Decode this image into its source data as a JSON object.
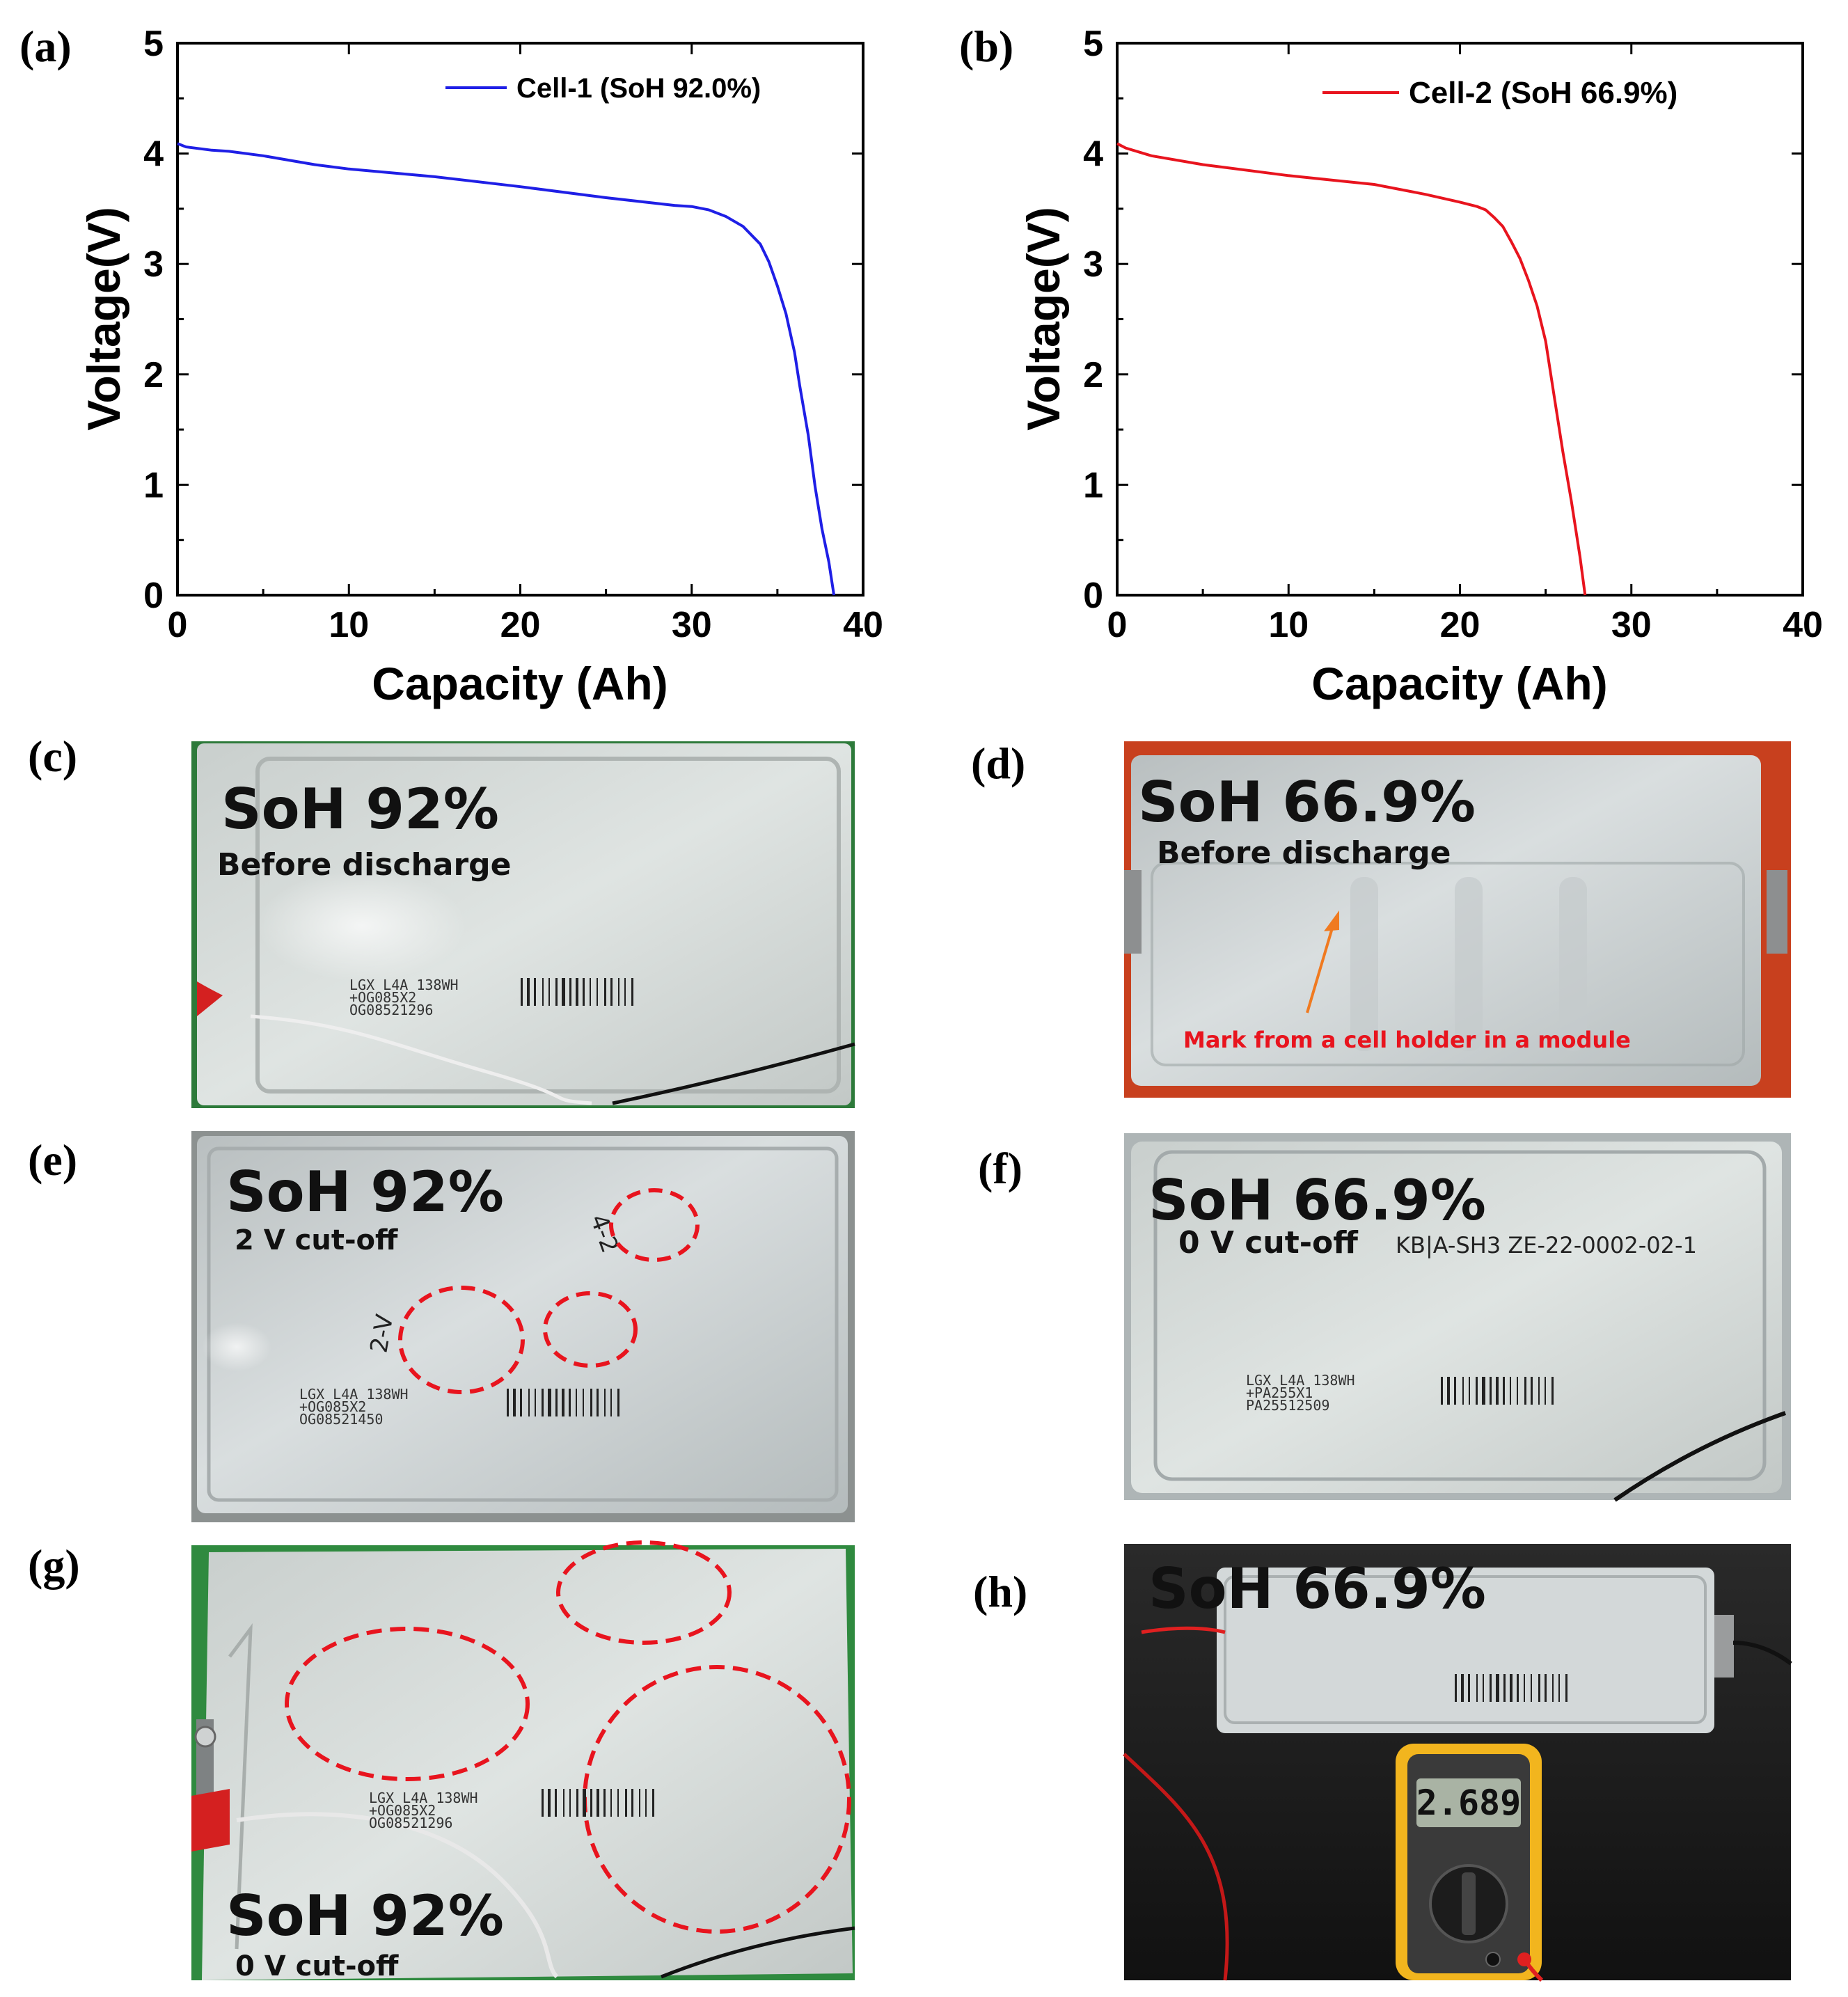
{
  "colors": {
    "cell1": "#1f1fe6",
    "cell2": "#e8141e",
    "circle": "#e8141e"
  },
  "charts": {
    "a": {
      "panel_label": "(a)"
    },
    "b": {
      "panel_label": "(b)"
    }
  },
  "chart_data": [
    {
      "type": "line",
      "panel": "(a)",
      "title": "",
      "xlabel": "Capacity (Ah)",
      "ylabel": "Voltage(V)",
      "xlim": [
        0,
        40
      ],
      "ylim": [
        0,
        5
      ],
      "xticks": [
        "0",
        "10",
        "20",
        "30",
        "40"
      ],
      "yticks": [
        "0",
        "1",
        "2",
        "3",
        "4",
        "5"
      ],
      "legend_position": "top-right",
      "series": [
        {
          "name": "Cell-1 (SoH 92.0%)",
          "color": "#1f1fe6",
          "x": [
            0,
            0.5,
            2,
            3,
            5,
            8,
            10,
            15,
            20,
            25,
            29,
            30,
            31,
            32,
            33,
            34,
            34.5,
            35,
            35.5,
            36,
            36.3,
            36.8,
            37.2,
            37.6,
            38,
            38.3
          ],
          "y": [
            4.09,
            4.06,
            4.03,
            4.02,
            3.98,
            3.9,
            3.86,
            3.79,
            3.7,
            3.6,
            3.53,
            3.52,
            3.49,
            3.43,
            3.34,
            3.18,
            3.02,
            2.8,
            2.55,
            2.2,
            1.9,
            1.45,
            0.98,
            0.6,
            0.3,
            0.0
          ]
        }
      ]
    },
    {
      "type": "line",
      "panel": "(b)",
      "title": "",
      "xlabel": "Capacity (Ah)",
      "ylabel": "Voltage(V)",
      "xlim": [
        0,
        40
      ],
      "ylim": [
        0,
        5
      ],
      "xticks": [
        "0",
        "10",
        "20",
        "30",
        "40"
      ],
      "yticks": [
        "0",
        "1",
        "2",
        "3",
        "4",
        "5"
      ],
      "legend_position": "top-right",
      "series": [
        {
          "name": "Cell-2 (SoH 66.9%)",
          "color": "#e8141e",
          "x": [
            0,
            0.5,
            2,
            5,
            10,
            15,
            18,
            20,
            21,
            21.5,
            22,
            22.5,
            23,
            23.5,
            24,
            24.5,
            25,
            25.5,
            26,
            26.5,
            27,
            27.3
          ],
          "y": [
            4.09,
            4.05,
            3.98,
            3.9,
            3.8,
            3.72,
            3.63,
            3.56,
            3.52,
            3.49,
            3.42,
            3.34,
            3.2,
            3.05,
            2.85,
            2.62,
            2.3,
            1.8,
            1.3,
            0.85,
            0.35,
            0.0
          ]
        }
      ]
    }
  ],
  "photos": {
    "c": {
      "panel_label": "(c)",
      "title": "SoH 92%",
      "subtitle": "Before discharge",
      "print1": "LGX L4A 138WH",
      "print2": "+OG085X2",
      "print3": "OG08521296"
    },
    "d": {
      "panel_label": "(d)",
      "title": "SoH 66.9%",
      "subtitle": "Before discharge",
      "annotation": "Mark from a cell holder in a module"
    },
    "e": {
      "panel_label": "(e)",
      "title": "SoH 92%",
      "subtitle": "2 V cut-off",
      "hand1": "2-V",
      "hand2": "4-2",
      "print1": "LGX L4A 138WH",
      "print2": "+OG085X2",
      "print3": "OG08521450"
    },
    "f": {
      "panel_label": "(f)",
      "title": "SoH 66.9%",
      "subtitle": "0 V cut-off",
      "hand": "KB|A-SH3 ZE-22-0002-02-1",
      "print1": "LGX L4A 138WH",
      "print2": "+PA255X1",
      "print3": "PA25512509"
    },
    "g": {
      "panel_label": "(g)",
      "title": "SoH 92%",
      "subtitle": "0 V cut-off",
      "print1": "LGX L4A 138WH",
      "print2": "+OG085X2",
      "print3": "OG08521296"
    },
    "h": {
      "panel_label": "(h)",
      "title": "SoH 66.9%",
      "meter_reading": "2.689"
    }
  }
}
